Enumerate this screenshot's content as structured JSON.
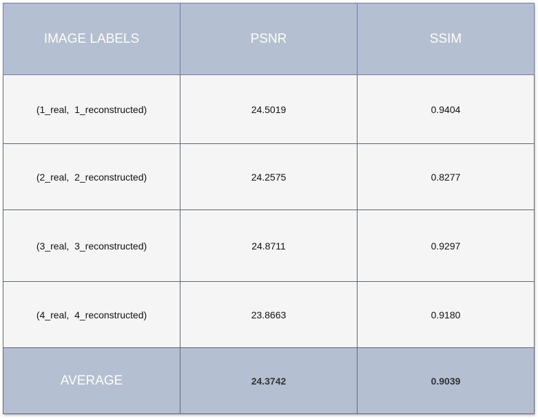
{
  "headers": [
    "IMAGE LABELS",
    "PSNR",
    "SSIM"
  ],
  "rows": [
    {
      "label": "(1_real,  1_reconstructed)",
      "psnr": "24.5019",
      "ssim": "0.9404"
    },
    {
      "label": "(2_real,  2_reconstructed)",
      "psnr": "24.2575",
      "ssim": "0.8277"
    },
    {
      "label": "(3_real,  3_reconstructed)",
      "psnr": "24.8711",
      "ssim": "0.9297"
    },
    {
      "label": "(4_real,  4_reconstructed)",
      "psnr": "23.8663",
      "ssim": "0.9180"
    }
  ],
  "average": {
    "label": "AVERAGE",
    "psnr": "24.3742",
    "ssim": "0.9039"
  },
  "colors": {
    "header_bg": "#b4bfd1",
    "cell_bg": "#f5f5f5",
    "header_text": "#ffffff"
  }
}
